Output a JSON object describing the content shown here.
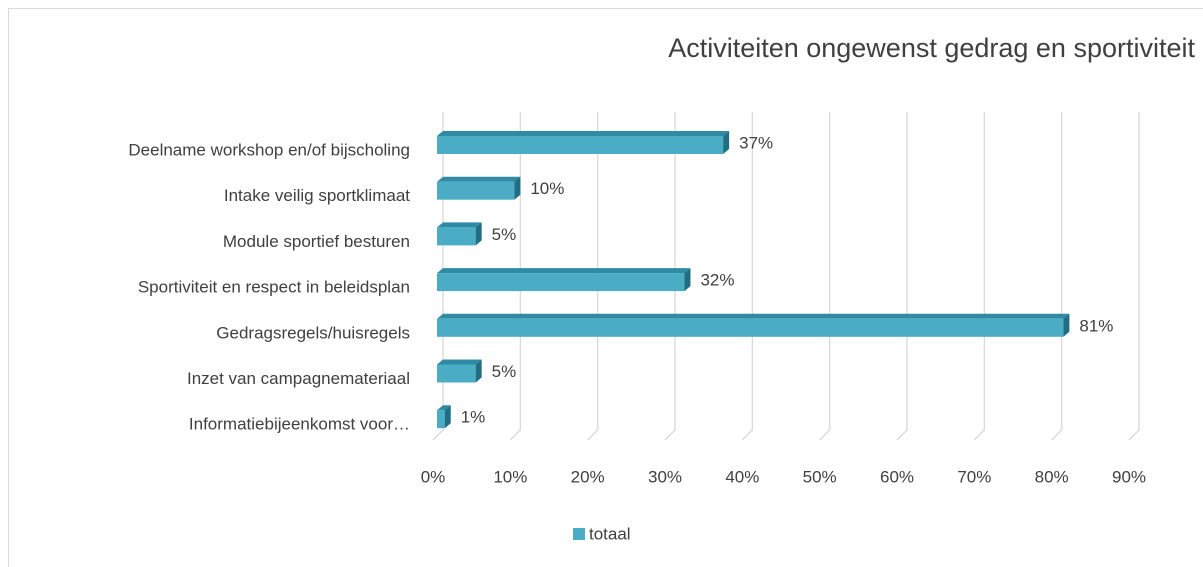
{
  "chart_data": {
    "type": "bar",
    "orientation": "horizontal",
    "title": "Activiteiten ongewenst gedrag en sportiviteit",
    "categories": [
      "Deelname workshop en/of bijscholing",
      "Intake veilig sportklimaat",
      "Module sportief besturen",
      "Sportiviteit en respect in beleidsplan",
      "Gedragsregels/huisregels",
      "Inzet van campagnemateriaal",
      "Informatiebijeenkomst voor…"
    ],
    "series": [
      {
        "name": "totaal",
        "color": "#4bacc6",
        "values": [
          37,
          10,
          5,
          32,
          81,
          5,
          1
        ],
        "value_labels": [
          "37%",
          "10%",
          "5%",
          "32%",
          "81%",
          "5%",
          "1%"
        ]
      }
    ],
    "xlim": [
      0,
      90
    ],
    "xticks": [
      {
        "value": 0,
        "label": "0%"
      },
      {
        "value": 10,
        "label": "10%"
      },
      {
        "value": 20,
        "label": "20%"
      },
      {
        "value": 30,
        "label": "30%"
      },
      {
        "value": 40,
        "label": "40%"
      },
      {
        "value": 50,
        "label": "50%"
      },
      {
        "value": 60,
        "label": "60%"
      },
      {
        "value": 70,
        "label": "70%"
      },
      {
        "value": 80,
        "label": "80%"
      },
      {
        "value": 90,
        "label": "90%"
      }
    ],
    "grid": true,
    "legend": "bottom"
  }
}
